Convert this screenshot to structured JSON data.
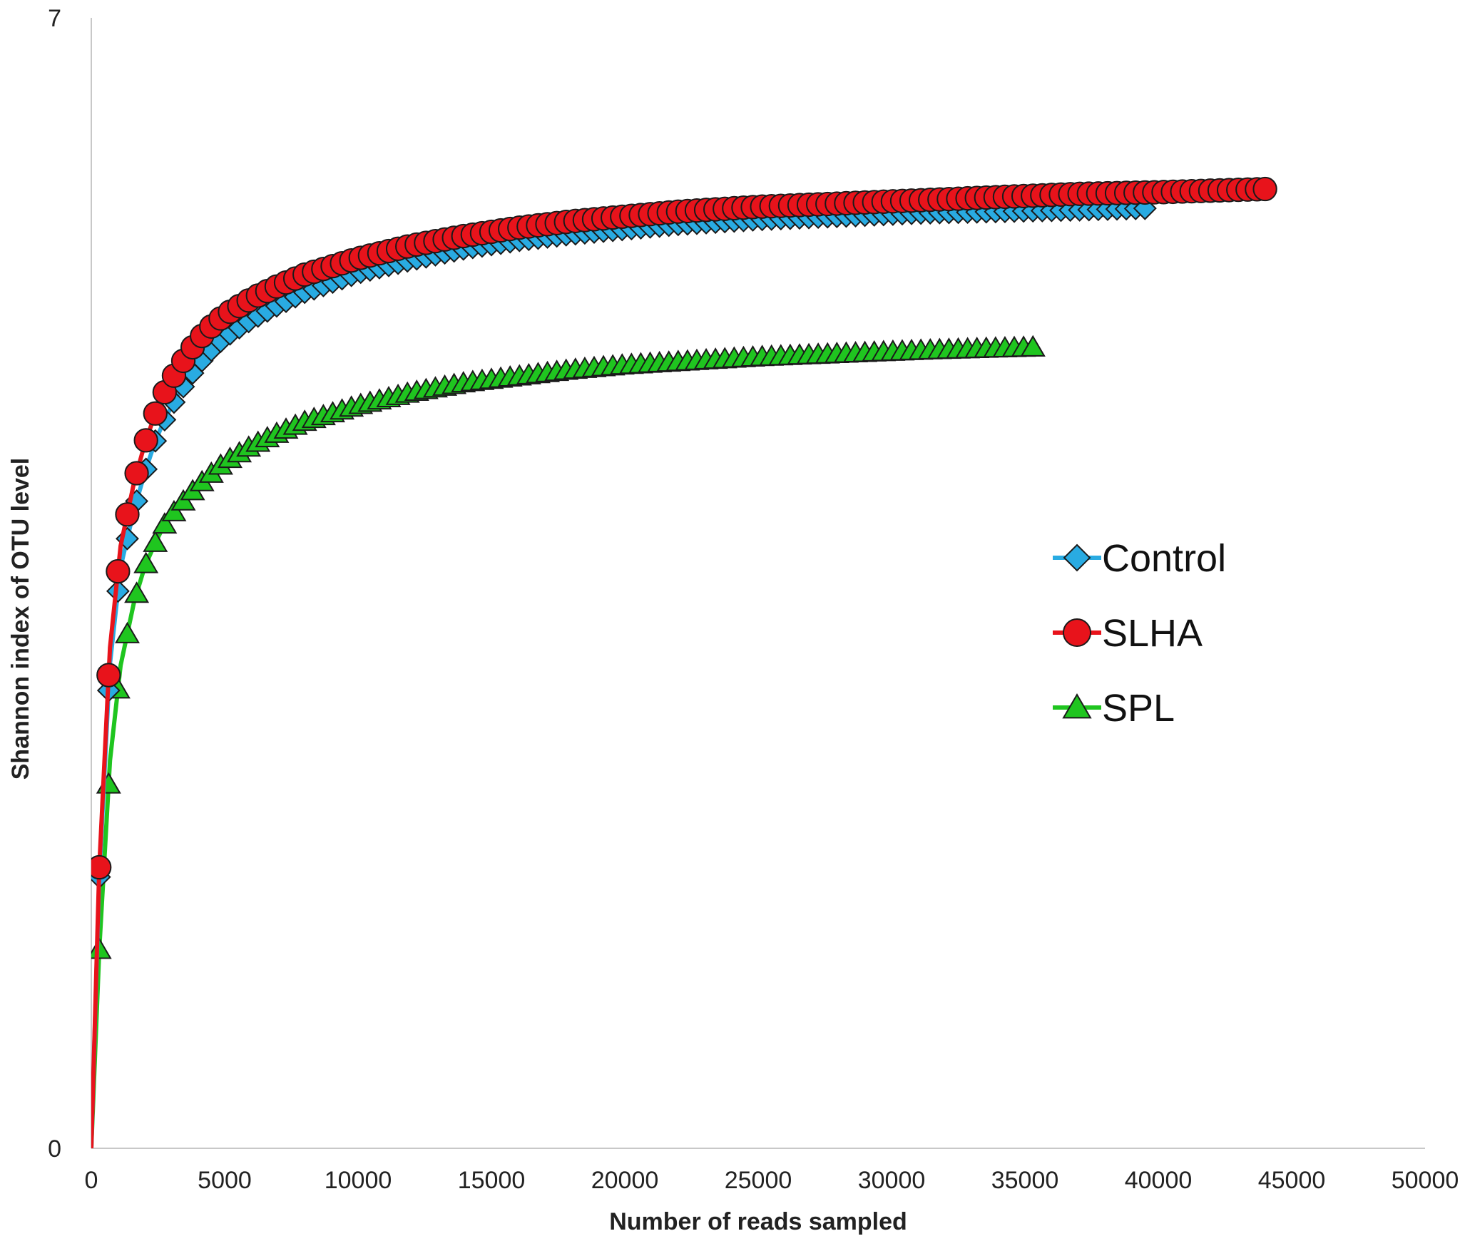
{
  "chart_data": {
    "type": "line",
    "title": "",
    "xlabel": "Number of reads sampled",
    "ylabel": "Shannon index of OTU level",
    "xlim": [
      0,
      50000
    ],
    "ylim": [
      0,
      7
    ],
    "x_ticks": [
      "0",
      "5000",
      "10000",
      "15000",
      "20000",
      "25000",
      "30000",
      "35000",
      "40000",
      "45000",
      "50000"
    ],
    "y_ticks": [
      "0",
      "7"
    ],
    "grid": false,
    "legend_position": "right",
    "series": [
      {
        "name": "Control",
        "color": "#29abe2",
        "marker": "diamond",
        "points": [
          [
            0,
            0
          ],
          [
            300,
            1.68
          ],
          [
            700,
            3.0
          ],
          [
            1100,
            3.6
          ],
          [
            1600,
            3.95
          ],
          [
            2000,
            4.18
          ],
          [
            2400,
            4.38
          ],
          [
            2800,
            4.53
          ],
          [
            3300,
            4.68
          ],
          [
            3800,
            4.8
          ],
          [
            4300,
            4.91
          ],
          [
            5000,
            5.02
          ],
          [
            6000,
            5.13
          ],
          [
            7000,
            5.22
          ],
          [
            8000,
            5.3
          ],
          [
            9000,
            5.36
          ],
          [
            10000,
            5.42
          ],
          [
            11000,
            5.46
          ],
          [
            12000,
            5.5
          ],
          [
            14000,
            5.57
          ],
          [
            16000,
            5.62
          ],
          [
            18000,
            5.66
          ],
          [
            20000,
            5.69
          ],
          [
            22000,
            5.72
          ],
          [
            25000,
            5.75
          ],
          [
            28000,
            5.77
          ],
          [
            31000,
            5.79
          ],
          [
            34000,
            5.8
          ],
          [
            37000,
            5.81
          ],
          [
            39500,
            5.82
          ]
        ]
      },
      {
        "name": "SLHA",
        "color": "#e8131b",
        "marker": "circle",
        "points": [
          [
            0,
            0
          ],
          [
            300,
            1.74
          ],
          [
            700,
            3.1
          ],
          [
            1100,
            3.73
          ],
          [
            1600,
            4.12
          ],
          [
            2000,
            4.36
          ],
          [
            2400,
            4.55
          ],
          [
            2800,
            4.7
          ],
          [
            3300,
            4.84
          ],
          [
            3800,
            4.96
          ],
          [
            4300,
            5.06
          ],
          [
            5000,
            5.16
          ],
          [
            6000,
            5.26
          ],
          [
            7000,
            5.34
          ],
          [
            8000,
            5.41
          ],
          [
            9000,
            5.46
          ],
          [
            10000,
            5.51
          ],
          [
            11000,
            5.55
          ],
          [
            12000,
            5.59
          ],
          [
            14000,
            5.65
          ],
          [
            16000,
            5.7
          ],
          [
            18000,
            5.74
          ],
          [
            20000,
            5.77
          ],
          [
            22000,
            5.8
          ],
          [
            25000,
            5.83
          ],
          [
            28000,
            5.85
          ],
          [
            31000,
            5.87
          ],
          [
            34000,
            5.89
          ],
          [
            37000,
            5.91
          ],
          [
            40000,
            5.92
          ],
          [
            42000,
            5.93
          ],
          [
            44000,
            5.94
          ]
        ]
      },
      {
        "name": "SPL",
        "color": "#1fc51f",
        "marker": "triangle",
        "points": [
          [
            0,
            0
          ],
          [
            300,
            1.23
          ],
          [
            700,
            2.4
          ],
          [
            1100,
            2.99
          ],
          [
            1600,
            3.38
          ],
          [
            2000,
            3.6
          ],
          [
            2400,
            3.75
          ],
          [
            2800,
            3.88
          ],
          [
            3300,
            3.98
          ],
          [
            3800,
            4.07
          ],
          [
            4300,
            4.15
          ],
          [
            5000,
            4.25
          ],
          [
            6000,
            4.35
          ],
          [
            7000,
            4.43
          ],
          [
            8000,
            4.5
          ],
          [
            9000,
            4.55
          ],
          [
            10000,
            4.6
          ],
          [
            11000,
            4.64
          ],
          [
            12000,
            4.68
          ],
          [
            14000,
            4.74
          ],
          [
            16000,
            4.78
          ],
          [
            18000,
            4.82
          ],
          [
            20000,
            4.85
          ],
          [
            22000,
            4.87
          ],
          [
            25000,
            4.9
          ],
          [
            28000,
            4.92
          ],
          [
            31000,
            4.94
          ],
          [
            33000,
            4.95
          ],
          [
            35300,
            4.96
          ]
        ]
      }
    ]
  }
}
